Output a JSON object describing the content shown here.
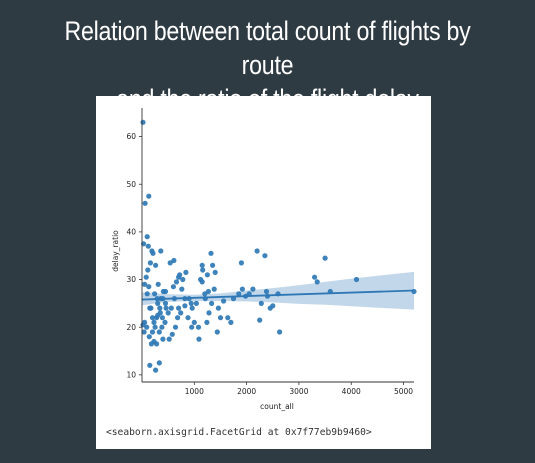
{
  "slide": {
    "title_line1": "Relation between total count of flights by route",
    "title_line2": "and the ratio of the flight delay"
  },
  "output": {
    "repr_text": "<seaborn.axisgrid.FacetGrid at 0x7f77eb9b9460>"
  },
  "chart_data": {
    "type": "scatter",
    "title": "",
    "xlabel": "count_all",
    "ylabel": "delay_ratio",
    "xlim": [
      0,
      5200
    ],
    "ylim": [
      8.5,
      66
    ],
    "xticks": [
      1000,
      2000,
      3000,
      4000,
      5000
    ],
    "xtick_labels": [
      "1000",
      "2000",
      "3000",
      "4000",
      "5000"
    ],
    "yticks": [
      10,
      20,
      30,
      40,
      50,
      60
    ],
    "ytick_labels": [
      "10",
      "20",
      "30",
      "40",
      "50",
      "60"
    ],
    "grid": false,
    "legend": false,
    "colors": {
      "points": "#2f78b5",
      "line": "#2f78b5",
      "band": "#aecbe3",
      "axis": "#333333"
    },
    "regression": {
      "x": [
        0,
        5200
      ],
      "y": [
        25.8,
        27.7
      ]
    },
    "confidence_band": {
      "x": [
        0,
        500,
        1000,
        1500,
        2000,
        2500,
        3000,
        3500,
        4000,
        4500,
        5200
      ],
      "upper": [
        27.3,
        26.9,
        26.8,
        27.1,
        27.7,
        28.2,
        28.8,
        29.5,
        30.2,
        30.8,
        31.6
      ],
      "lower": [
        24.6,
        25.3,
        25.5,
        25.5,
        25.4,
        25.2,
        24.9,
        24.7,
        24.4,
        24.1,
        23.7
      ]
    },
    "x": [
      20,
      60,
      110,
      160,
      210,
      260,
      310,
      360,
      410,
      30,
      80,
      130,
      190,
      240,
      290,
      340,
      390,
      450,
      50,
      100,
      150,
      200,
      250,
      300,
      350,
      400,
      460,
      40,
      90,
      140,
      180,
      230,
      280,
      330,
      380,
      440,
      500,
      560,
      620,
      680,
      740,
      520,
      580,
      640,
      700,
      760,
      820,
      880,
      940,
      1000,
      540,
      600,
      660,
      720,
      780,
      840,
      900,
      960,
      1040,
      1080,
      1120,
      1160,
      1200,
      1240,
      1280,
      1320,
      1380,
      1440,
      1500,
      1560,
      1640,
      1700,
      1090,
      1150,
      1210,
      1270,
      1330,
      1400,
      1460,
      1850,
      1920,
      1980,
      2050,
      2120,
      2200,
      2280,
      2380,
      2450,
      2600,
      2250,
      2350,
      2400,
      2500,
      3300,
      3350,
      3500,
      3600,
      4100,
      5200,
      20,
      50,
      100,
      120,
      150,
      260,
      330,
      200,
      280,
      400,
      170,
      2630,
      1250,
      1900,
      1750,
      820,
      450,
      700,
      360,
      610,
      130,
      230,
      950,
      1350,
      1150,
      300
    ],
    "y": [
      63,
      46,
      32,
      33.5,
      35.5,
      33,
      29,
      26,
      27.5,
      37.5,
      30.5,
      47.5,
      36,
      27,
      26,
      24,
      22,
      25,
      21,
      27,
      24,
      22,
      20,
      25,
      23,
      26,
      24,
      19,
      20,
      18,
      16.5,
      21,
      22,
      19,
      20,
      21,
      23,
      24,
      26,
      22,
      23,
      17.5,
      18.5,
      20,
      24,
      28,
      26,
      22,
      25,
      21,
      33.5,
      28.5,
      29.5,
      31,
      30,
      31.5,
      26,
      24,
      25,
      20,
      30,
      32,
      27,
      21,
      23,
      35.5,
      28,
      19,
      22,
      25.5,
      22,
      21,
      17.5,
      29.5,
      26,
      27.5,
      25,
      31.5,
      24,
      27,
      28,
      26.5,
      27,
      28,
      36,
      25,
      27.5,
      24,
      27,
      21.5,
      35,
      26.5,
      24.5,
      30.5,
      29.5,
      34.5,
      27.5,
      30,
      27.5,
      20.5,
      29,
      39,
      37,
      12,
      11,
      12.5,
      19,
      16.5,
      17.5,
      24,
      19,
      31,
      33.5,
      26,
      24.5,
      27.5,
      30.5,
      36,
      34,
      28.5,
      17,
      20,
      33,
      33,
      22.5
    ]
  }
}
